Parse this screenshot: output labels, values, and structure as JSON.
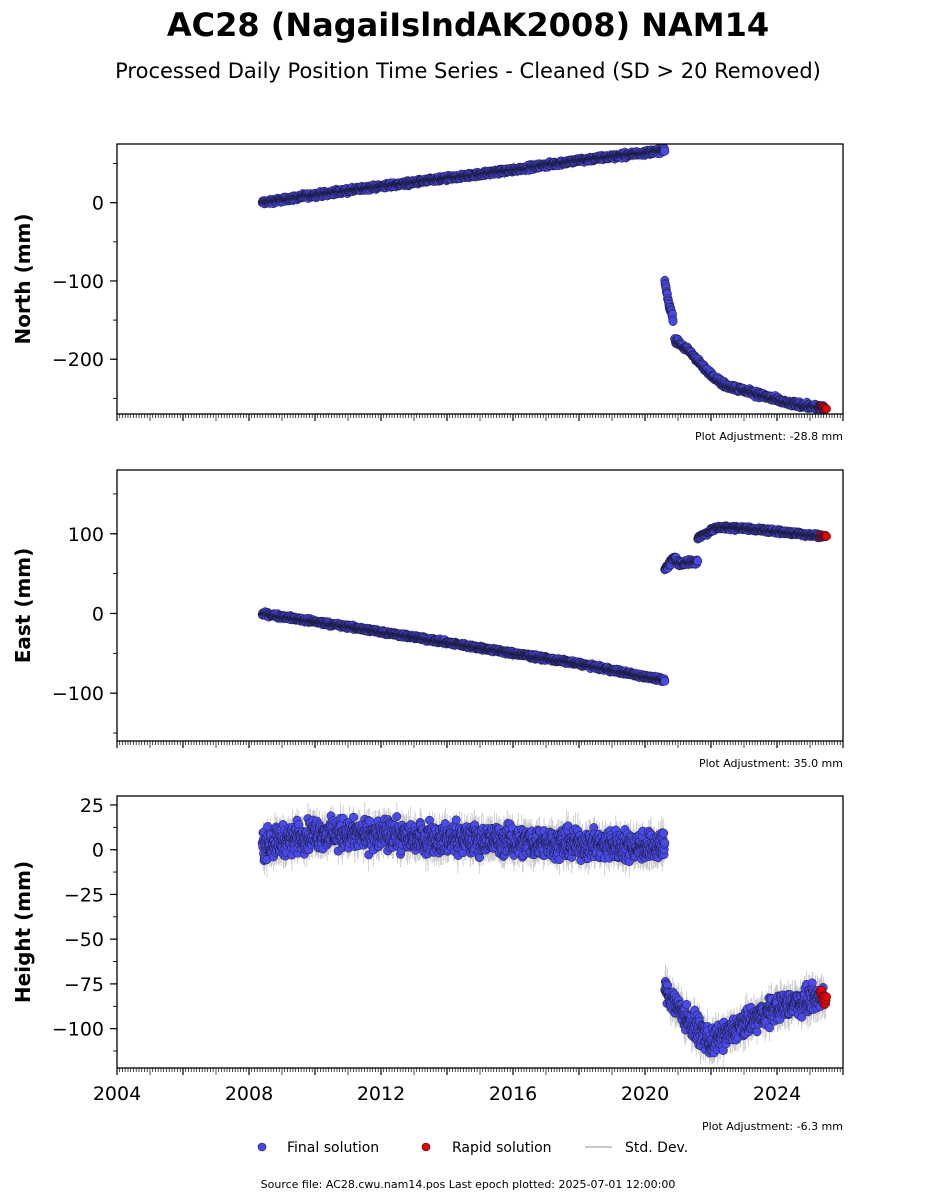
{
  "title": "AC28 (NagaiIslndAK2008) NAM14",
  "subtitle": "Processed Daily Position Time Series - Cleaned (SD > 20 Removed)",
  "colors": {
    "final": "#4a4ae8",
    "rapid": "#e60000",
    "stddev": "#c8c8c8",
    "edge": "#1a1a3a"
  },
  "legend": {
    "final_label": "Final solution",
    "rapid_label": "Rapid solution",
    "std_label": "Std. Dev."
  },
  "footer": "Source file: AC28.cwu.nam14.pos  Last epoch plotted: 2025-07-01 12:00:00",
  "chart_data": [
    {
      "type": "scatter",
      "ylabel": "North (mm)",
      "adjustment": "Plot Adjustment: -28.8 mm",
      "xlim": [
        2004,
        2026
      ],
      "ylim": [
        -270,
        75
      ],
      "yticks": [
        0,
        -100,
        -200
      ],
      "segments": [
        {
          "kind": "final",
          "points": [
            [
              2008.4,
              0
            ],
            [
              2010,
              10
            ],
            [
              2012,
              21
            ],
            [
              2014,
              31
            ],
            [
              2016,
              42
            ],
            [
              2018,
              54
            ],
            [
              2020.6,
              67
            ]
          ],
          "noise": 2.5
        },
        {
          "kind": "final",
          "points": [
            [
              2020.6,
              -100
            ],
            [
              2020.7,
              -125
            ],
            [
              2020.85,
              -148
            ]
          ],
          "noise": 3
        },
        {
          "kind": "final",
          "points": [
            [
              2020.9,
              -175
            ],
            [
              2021.4,
              -192
            ],
            [
              2021.8,
              -212
            ],
            [
              2022.4,
              -233
            ],
            [
              2023.3,
              -243
            ],
            [
              2024.3,
              -256
            ],
            [
              2025.4,
              -262
            ]
          ],
          "noise": 3
        },
        {
          "kind": "rapid",
          "points": [
            [
              2025.3,
              -260
            ],
            [
              2025.5,
              -264
            ]
          ],
          "noise": 1.5
        }
      ]
    },
    {
      "type": "scatter",
      "ylabel": "East (mm)",
      "adjustment": "Plot Adjustment: 35.0 mm",
      "xlim": [
        2004,
        2026
      ],
      "ylim": [
        -160,
        180
      ],
      "yticks": [
        100,
        0,
        -100
      ],
      "segments": [
        {
          "kind": "final",
          "points": [
            [
              2008.4,
              0
            ],
            [
              2012,
              -23
            ],
            [
              2016,
              -50
            ],
            [
              2018,
              -63
            ],
            [
              2020.6,
              -84
            ]
          ],
          "noise": 2
        },
        {
          "kind": "final",
          "points": [
            [
              2020.6,
              55
            ],
            [
              2020.9,
              72
            ],
            [
              2021.0,
              63
            ],
            [
              2021.6,
              65
            ]
          ],
          "noise": 3
        },
        {
          "kind": "final",
          "points": [
            [
              2021.6,
              95
            ],
            [
              2022.2,
              108
            ],
            [
              2023.0,
              107
            ],
            [
              2024.2,
              102
            ],
            [
              2025.4,
              97
            ]
          ],
          "noise": 2
        },
        {
          "kind": "rapid",
          "points": [
            [
              2025.3,
              97
            ],
            [
              2025.5,
              97
            ]
          ],
          "noise": 1.5
        }
      ]
    },
    {
      "type": "scatter",
      "ylabel": "Height (mm)",
      "adjustment": "Plot Adjustment: -6.3 mm",
      "xlim": [
        2004,
        2026
      ],
      "ylim": [
        -122,
        30
      ],
      "yticks": [
        25,
        0,
        -25,
        -50,
        -75,
        -100
      ],
      "xticks": [
        2004,
        2008,
        2012,
        2016,
        2020,
        2024
      ],
      "segments": [
        {
          "kind": "final",
          "points": [
            [
              2008.4,
              3
            ],
            [
              2010,
              9
            ],
            [
              2012,
              8
            ],
            [
              2014,
              6
            ],
            [
              2016,
              5
            ],
            [
              2018,
              3
            ],
            [
              2020.6,
              2
            ]
          ],
          "noise": 7
        },
        {
          "kind": "final",
          "points": [
            [
              2020.6,
              -78
            ],
            [
              2021.3,
              -95
            ],
            [
              2022.0,
              -108
            ],
            [
              2023.0,
              -98
            ],
            [
              2024.0,
              -88
            ],
            [
              2025.4,
              -82
            ]
          ],
          "noise": 6
        },
        {
          "kind": "rapid",
          "points": [
            [
              2025.3,
              -78
            ],
            [
              2025.5,
              -86
            ]
          ],
          "noise": 3
        }
      ]
    }
  ]
}
